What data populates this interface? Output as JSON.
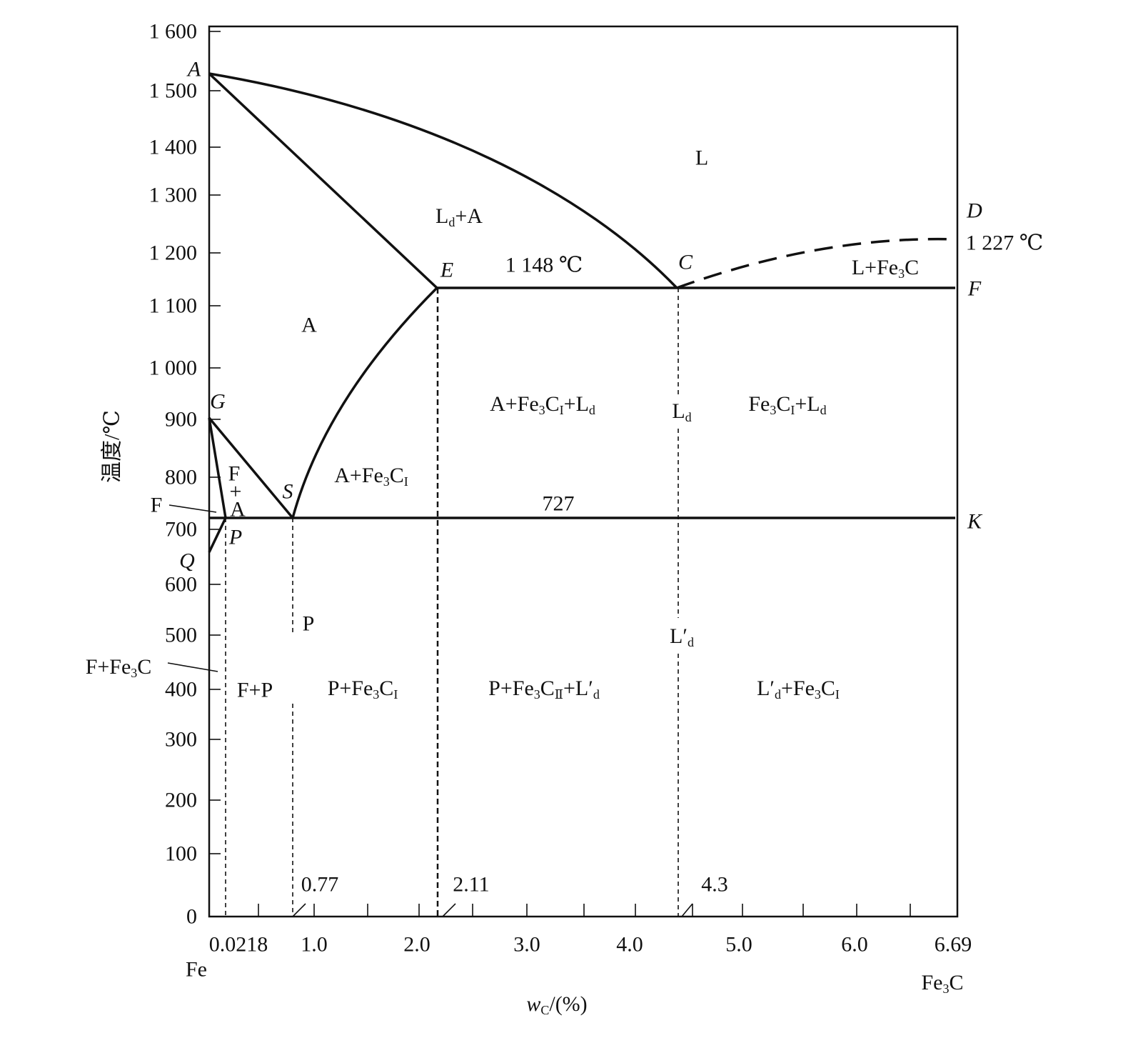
{
  "y_axis": {
    "label": "温度/℃",
    "ticks": [
      "1 600",
      "1 500",
      "1 400",
      "1 300",
      "1 200",
      "1 100",
      "1 000",
      "900",
      "800",
      "700",
      "600",
      "500",
      "400",
      "300",
      "200",
      "100",
      "0"
    ]
  },
  "x_axis": {
    "label": [
      "w",
      "C",
      "/(%)"
    ],
    "ticks": [
      "0.0218",
      "1.0",
      "2.0",
      "3.0",
      "4.0",
      "5.0",
      "6.0",
      "6.69"
    ],
    "left_end": "Fe",
    "right_end": [
      "Fe",
      "3",
      "C"
    ]
  },
  "points": [
    "A",
    "G",
    "Q",
    "P",
    "S",
    "E",
    "C",
    "D",
    "F",
    "K"
  ],
  "annotations": [
    "1 148 ℃",
    "1 227 ℃",
    "727",
    "0.77",
    "2.11",
    "4.3"
  ],
  "regions": [
    "L",
    [
      "L",
      "d",
      "+A"
    ],
    "A",
    [
      "L+Fe",
      "3",
      "C"
    ],
    [
      "A+Fe",
      "3",
      "C",
      "I",
      "+L",
      "d"
    ],
    [
      "L",
      "d"
    ],
    [
      "Fe",
      "3",
      "C",
      "I",
      "+L",
      "d"
    ],
    [
      "A+Fe",
      "3",
      "C",
      "I"
    ],
    "F",
    "P",
    [
      "L′",
      "d"
    ],
    [
      "F+Fe",
      "3",
      "C"
    ],
    "F+P",
    [
      "P+Fe",
      "3",
      "C",
      "I"
    ],
    [
      "P+Fe",
      "3",
      "C",
      "Ⅱ",
      "+L′",
      "d"
    ],
    [
      "L′",
      "d",
      "+Fe",
      "3",
      "C",
      "I"
    ]
  ],
  "f_plus_a": [
    "F",
    "+",
    "A"
  ]
}
